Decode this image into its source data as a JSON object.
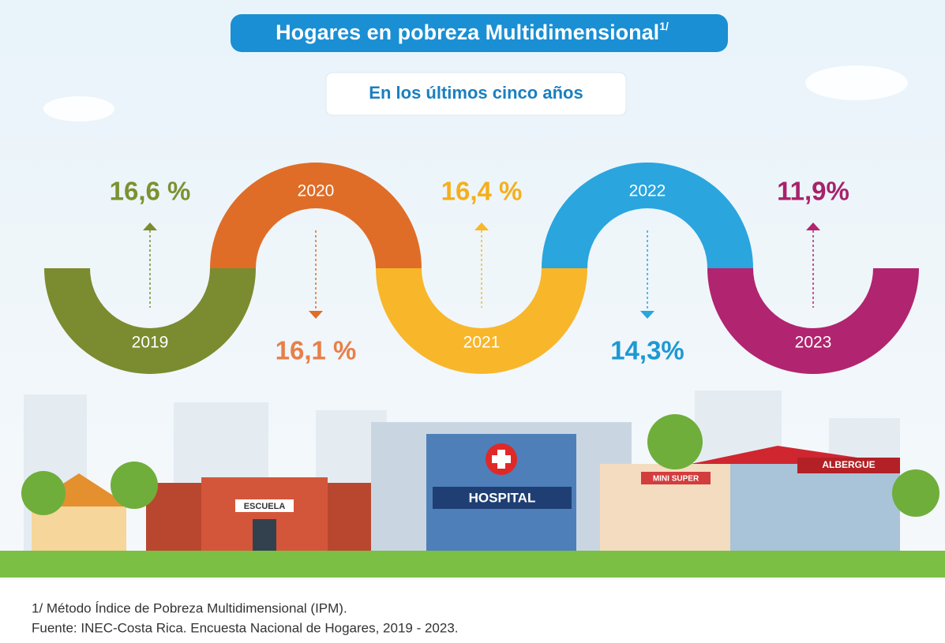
{
  "header": {
    "title": "Hogares en pobreza Multidimensional",
    "title_note": "1/",
    "subtitle": "En los últimos cinco años"
  },
  "timeline": [
    {
      "year": "2019",
      "value": "16,6 %",
      "color": "#7b8b2f",
      "text_color": "#7d9130"
    },
    {
      "year": "2020",
      "value": "16,1 %",
      "color": "#df6d27",
      "text_color": "#e77f4a"
    },
    {
      "year": "2021",
      "value": "16,4 %",
      "color": "#f8b62a",
      "text_color": "#f5af1c"
    },
    {
      "year": "2022",
      "value": "14,3%",
      "color": "#2aa5de",
      "text_color": "#1e98d4"
    },
    {
      "year": "2023",
      "value": "11,9%",
      "color": "#b1246f",
      "text_color": "#a7226b"
    }
  ],
  "buildings": {
    "school": "ESCUELA",
    "hospital": "HOSPITAL",
    "store": "MINI SUPER",
    "shelter": "ALBERGUE"
  },
  "footer": {
    "note": "1/ Método Índice de Pobreza Multidimensional (IPM).",
    "source": "Fuente: INEC-Costa Rica. Encuesta Nacional de Hogares, 2019 - 2023."
  }
}
